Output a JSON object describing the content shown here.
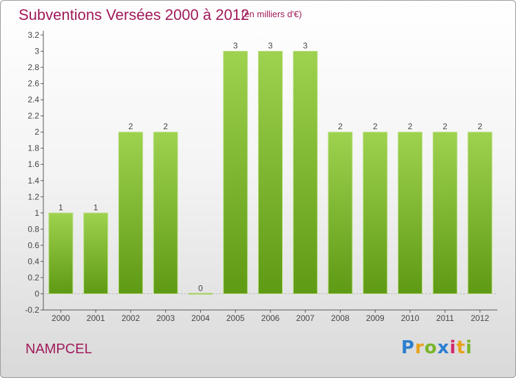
{
  "header": {
    "title": "Subventions Versées 2000 à 2012",
    "subtitle": "(en milliers d'€)"
  },
  "footer": {
    "commune": "NAMPCEL",
    "logo": "Proxiti"
  },
  "colors": {
    "title": "#a0195a",
    "bar_top": "#9ed24f",
    "bar_bottom": "#5f9a14",
    "axis": "#555555"
  },
  "chart_data": {
    "type": "bar",
    "title": "Subventions Versées 2000 à 2012",
    "subtitle": "(en milliers d'€)",
    "xlabel": "",
    "ylabel": "",
    "categories": [
      "2000",
      "2001",
      "2002",
      "2003",
      "2004",
      "2005",
      "2006",
      "2007",
      "2008",
      "2009",
      "2010",
      "2011",
      "2012"
    ],
    "values": [
      1,
      1,
      2,
      2,
      0,
      3,
      3,
      3,
      2,
      2,
      2,
      2,
      2
    ],
    "data_labels": [
      "1",
      "1",
      "2",
      "2",
      "0",
      "3",
      "3",
      "3",
      "2",
      "2",
      "2",
      "2",
      "2"
    ],
    "ylim": [
      -0.2,
      3.2
    ],
    "yticks": [
      "-0.2",
      "0",
      "0.2",
      "0.4",
      "0.6",
      "0.8",
      "1",
      "1.2",
      "1.4",
      "1.6",
      "1.8",
      "2",
      "2.2",
      "2.4",
      "2.6",
      "2.8",
      "3",
      "3.2"
    ],
    "grid": false
  }
}
